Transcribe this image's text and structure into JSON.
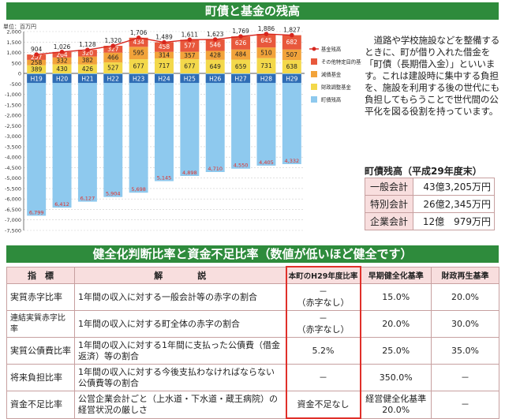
{
  "banners": {
    "top": "町債と基金の残高",
    "bottom": "健全化判断比率と資金不足比率（数値が低いほど健全です）"
  },
  "chart_data": {
    "type": "bar",
    "unit": "単位：百万円",
    "categories": [
      "H19",
      "H20",
      "H21",
      "H22",
      "H23",
      "H24",
      "H25",
      "H26",
      "H27",
      "H28",
      "H29"
    ],
    "ylim": [
      -7500,
      2000
    ],
    "yticks": [
      2000,
      1500,
      1000,
      500,
      0,
      -500,
      -1000,
      -1500,
      -2000,
      -2500,
      -3000,
      -3500,
      -4000,
      -4500,
      -5000,
      -5500,
      -6000,
      -6500,
      -7000,
      -7500
    ],
    "ytick_labels": [
      "2,000",
      "1,500",
      "1,000",
      "500",
      "0",
      "-500",
      "-1,000",
      "-1,500",
      "-2,000",
      "-2,500",
      "-3,000",
      "-3,500",
      "-4,000",
      "-4,500",
      "-5,000",
      "-5,500",
      "-6,000",
      "-6,500",
      "-7,000",
      "-7,500"
    ],
    "series": [
      {
        "name": "財政調整基金",
        "color": "#f3d84a",
        "values": [
          389,
          430,
          426,
          527,
          677,
          717,
          677,
          649,
          659,
          731,
          638
        ]
      },
      {
        "name": "減債基金",
        "color": "#f2a33a",
        "values": [
          258,
          332,
          382,
          466,
          595,
          314,
          357,
          428,
          484,
          510,
          507
        ]
      },
      {
        "name": "その他特定目的基金",
        "color": "#e8583c",
        "values": [
          257,
          264,
          320,
          327,
          434,
          458,
          577,
          546,
          626,
          645,
          682
        ]
      },
      {
        "name": "町債残高",
        "color": "#8ec9ee",
        "values": [
          -6799,
          -6412,
          -6127,
          -5904,
          -5698,
          -5145,
          -4898,
          -4710,
          -4550,
          -4405,
          -4332
        ]
      }
    ],
    "fund_total": {
      "name": "基金残高",
      "color": "#d7261e",
      "values": [
        904,
        1026,
        1128,
        1320,
        1706,
        1489,
        1611,
        1623,
        1769,
        1886,
        1827
      ],
      "labels": [
        "904",
        "1,026",
        "1,128",
        "1,320",
        "1,706",
        "1,489",
        "1,611",
        "1,623",
        "1,769",
        "1,886",
        "1,827"
      ]
    },
    "legend_order": [
      "基金残高",
      "その他特定目的基金",
      "減債基金",
      "財政調整基金",
      "町債残高"
    ]
  },
  "description": "道路や学校施設などを整備するときに、町が借り入れた借金を「町債（長期借入金）」といいます。これは建設時に集中する負担を、施設を利用する後の世代にも負担してもらうことで世代間の公平化を図る役割を持っています。",
  "debt": {
    "title": "町債残高（平成29年度末）",
    "rows": [
      {
        "label": "一般会計",
        "value": "43億3,205万円"
      },
      {
        "label": "特別会計",
        "value": "26億2,345万円"
      },
      {
        "label": "企業会計",
        "value": "12億　979万円"
      }
    ]
  },
  "ratio_table": {
    "headers": [
      "指　標",
      "解　　　　説",
      "本町のH29年度比率",
      "早期健全化基準",
      "財政再生基準"
    ],
    "rows": [
      {
        "name": "実質赤字比率",
        "desc": "1年間の収入に対する一般会計等の赤字の割合",
        "town": "－\n（赤字なし）",
        "early": "15.0%",
        "recon": "20.0%"
      },
      {
        "name": "連結実質赤字比率",
        "desc": "1年間の収入に対する町全体の赤字の割合",
        "town": "－\n（赤字なし）",
        "early": "20.0%",
        "recon": "30.0%"
      },
      {
        "name": "実質公債費比率",
        "desc": "1年間の収入に対する1年間に支払った公債費（借金返済）等の割合",
        "town": "5.2%",
        "early": "25.0%",
        "recon": "35.0%"
      },
      {
        "name": "将来負担比率",
        "desc": "1年間の収入に対する今後支払わなければならない公債費等の割合",
        "town": "－",
        "early": "350.0%",
        "recon": "－"
      },
      {
        "name": "資金不足比率",
        "desc": "公営企業会計ごと（上水道・下水道・蔵王病院）の経営状況の厳しさ",
        "town": "資金不足なし",
        "early": "経営健全化基準\n20.0%",
        "recon": "－"
      }
    ]
  }
}
